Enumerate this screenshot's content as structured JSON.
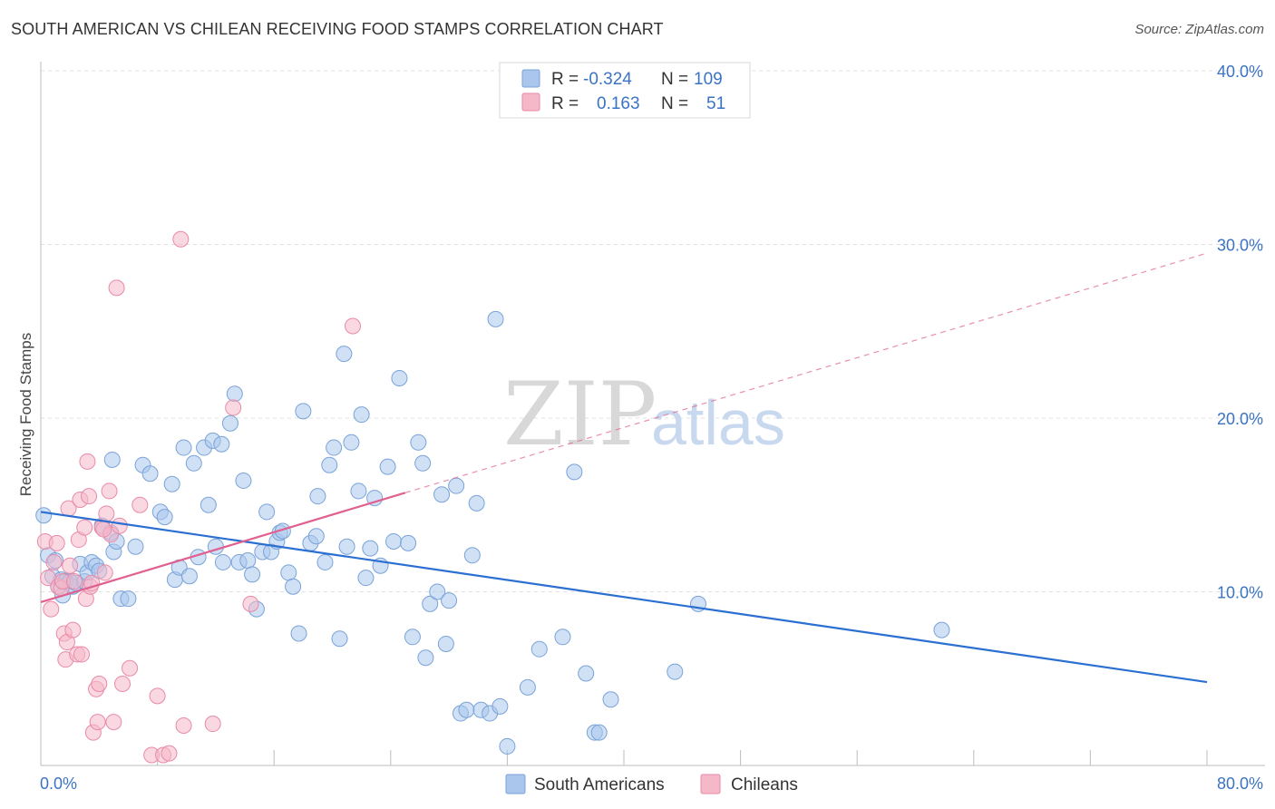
{
  "title": "SOUTH AMERICAN VS CHILEAN RECEIVING FOOD STAMPS CORRELATION CHART",
  "source": "Source: ZipAtlas.com",
  "watermark": {
    "zip": "ZIP",
    "atlas": "atlas"
  },
  "legend_top": {
    "rows": [
      {
        "r_label": "R =",
        "r_value": "-0.324",
        "n_label": "N =",
        "n_value": "109",
        "color": "#aac6ec"
      },
      {
        "r_label": "R =",
        "r_value": "0.163",
        "n_label": "N =",
        "n_value": "51",
        "color": "#f5b8c9"
      }
    ]
  },
  "legend_bottom": [
    {
      "label": "South Americans",
      "color": "#aac6ec"
    },
    {
      "label": "Chileans",
      "color": "#f5b8c9"
    }
  ],
  "chart_data": {
    "type": "scatter",
    "ylabel": "Receiving Food Stamps",
    "xlim": [
      0,
      80
    ],
    "ylim": [
      0,
      40
    ],
    "x_tick_labels": [
      {
        "value": 0,
        "label": "0.0%"
      },
      {
        "value": 80,
        "label": "80.0%"
      }
    ],
    "y_tick_labels": [
      {
        "value": 10,
        "label": "10.0%"
      },
      {
        "value": 20,
        "label": "20.0%"
      },
      {
        "value": 30,
        "label": "30.0%"
      },
      {
        "value": 40,
        "label": "40.0%"
      }
    ],
    "grid": true,
    "series": [
      {
        "name": "South Americans",
        "color": "#aac6ec",
        "stroke": "#7aa3d8",
        "trend": {
          "x0": 0,
          "y0": 14.6,
          "x1": 80,
          "y1": 4.8,
          "color": "#2a6fd1"
        },
        "points": [
          [
            0.2,
            14.4
          ],
          [
            0.5,
            12.1
          ],
          [
            0.8,
            10.9
          ],
          [
            1.0,
            11.8
          ],
          [
            1.2,
            10.3
          ],
          [
            1.4,
            10.7
          ],
          [
            1.5,
            9.8
          ],
          [
            1.7,
            10.6
          ],
          [
            2.0,
            10.6
          ],
          [
            2.2,
            10.3
          ],
          [
            2.4,
            10.5
          ],
          [
            2.7,
            11.6
          ],
          [
            3.0,
            10.6
          ],
          [
            3.2,
            11.1
          ],
          [
            3.5,
            11.7
          ],
          [
            3.8,
            11.5
          ],
          [
            4.0,
            11.2
          ],
          [
            4.2,
            13.8
          ],
          [
            4.8,
            13.4
          ],
          [
            5.0,
            12.3
          ],
          [
            5.2,
            12.9
          ],
          [
            5.5,
            9.6
          ],
          [
            6.0,
            9.6
          ],
          [
            6.5,
            12.6
          ],
          [
            4.9,
            17.6
          ],
          [
            7.0,
            17.3
          ],
          [
            7.5,
            16.8
          ],
          [
            8.2,
            14.6
          ],
          [
            8.5,
            14.3
          ],
          [
            9.0,
            16.2
          ],
          [
            9.2,
            10.7
          ],
          [
            9.5,
            11.4
          ],
          [
            9.8,
            18.3
          ],
          [
            10.2,
            10.9
          ],
          [
            10.5,
            17.4
          ],
          [
            10.8,
            12.0
          ],
          [
            11.2,
            18.3
          ],
          [
            11.5,
            15.0
          ],
          [
            11.8,
            18.7
          ],
          [
            12.0,
            12.6
          ],
          [
            12.4,
            18.5
          ],
          [
            12.5,
            11.7
          ],
          [
            13.0,
            19.7
          ],
          [
            13.3,
            21.4
          ],
          [
            13.6,
            11.7
          ],
          [
            13.9,
            16.4
          ],
          [
            14.2,
            11.8
          ],
          [
            14.5,
            11.0
          ],
          [
            14.8,
            9.0
          ],
          [
            15.2,
            12.3
          ],
          [
            15.5,
            14.6
          ],
          [
            15.8,
            12.3
          ],
          [
            16.2,
            12.9
          ],
          [
            16.4,
            13.4
          ],
          [
            16.6,
            13.5
          ],
          [
            17.0,
            11.1
          ],
          [
            17.3,
            10.3
          ],
          [
            17.7,
            7.6
          ],
          [
            18.0,
            20.4
          ],
          [
            18.5,
            12.8
          ],
          [
            18.9,
            13.2
          ],
          [
            19.0,
            15.5
          ],
          [
            19.5,
            11.7
          ],
          [
            19.8,
            17.3
          ],
          [
            20.1,
            18.3
          ],
          [
            20.5,
            7.3
          ],
          [
            20.8,
            23.7
          ],
          [
            21.0,
            12.6
          ],
          [
            21.3,
            18.6
          ],
          [
            21.8,
            15.8
          ],
          [
            22.0,
            20.2
          ],
          [
            22.3,
            10.8
          ],
          [
            22.6,
            12.5
          ],
          [
            22.9,
            15.4
          ],
          [
            23.3,
            11.5
          ],
          [
            23.8,
            17.2
          ],
          [
            24.2,
            12.9
          ],
          [
            24.6,
            22.3
          ],
          [
            25.2,
            12.8
          ],
          [
            25.5,
            7.4
          ],
          [
            25.9,
            18.6
          ],
          [
            26.2,
            17.4
          ],
          [
            26.4,
            6.2
          ],
          [
            26.7,
            9.3
          ],
          [
            27.2,
            10.0
          ],
          [
            27.5,
            15.6
          ],
          [
            27.8,
            7.0
          ],
          [
            28.0,
            9.5
          ],
          [
            28.5,
            16.1
          ],
          [
            28.8,
            3.0
          ],
          [
            29.2,
            3.2
          ],
          [
            29.6,
            12.1
          ],
          [
            29.9,
            15.1
          ],
          [
            30.2,
            3.2
          ],
          [
            30.8,
            3.0
          ],
          [
            31.2,
            25.7
          ],
          [
            31.5,
            3.4
          ],
          [
            32.0,
            1.1
          ],
          [
            33.4,
            4.5
          ],
          [
            34.2,
            6.7
          ],
          [
            35.8,
            7.4
          ],
          [
            36.6,
            16.9
          ],
          [
            37.4,
            5.3
          ],
          [
            38.0,
            1.9
          ],
          [
            38.3,
            1.9
          ],
          [
            39.1,
            3.8
          ],
          [
            43.5,
            5.4
          ],
          [
            45.1,
            9.3
          ],
          [
            61.8,
            7.8
          ]
        ]
      },
      {
        "name": "Chileans",
        "color": "#f5b8c9",
        "stroke": "#e98aa8",
        "trend": {
          "x0": 0,
          "y0": 9.4,
          "x1": 25.0,
          "y1": 15.7,
          "color": "#e0608f",
          "dash_to_x": 80,
          "dash_to_y": 29.5
        },
        "points": [
          [
            0.3,
            12.9
          ],
          [
            0.5,
            10.8
          ],
          [
            0.7,
            9.0
          ],
          [
            0.9,
            11.7
          ],
          [
            1.1,
            12.8
          ],
          [
            1.2,
            10.3
          ],
          [
            1.4,
            10.2
          ],
          [
            1.5,
            10.6
          ],
          [
            1.6,
            7.6
          ],
          [
            1.7,
            6.1
          ],
          [
            1.8,
            7.1
          ],
          [
            1.9,
            14.8
          ],
          [
            2.0,
            11.5
          ],
          [
            2.2,
            7.8
          ],
          [
            2.3,
            10.6
          ],
          [
            2.5,
            6.4
          ],
          [
            2.6,
            13.0
          ],
          [
            2.7,
            15.3
          ],
          [
            2.8,
            6.4
          ],
          [
            3.0,
            13.7
          ],
          [
            3.1,
            9.6
          ],
          [
            3.2,
            17.5
          ],
          [
            3.3,
            15.5
          ],
          [
            3.4,
            10.3
          ],
          [
            3.5,
            10.5
          ],
          [
            3.6,
            1.9
          ],
          [
            3.8,
            4.4
          ],
          [
            3.9,
            2.5
          ],
          [
            4.0,
            4.7
          ],
          [
            4.2,
            13.7
          ],
          [
            4.4,
            11.1
          ],
          [
            4.5,
            14.5
          ],
          [
            4.7,
            15.8
          ],
          [
            4.8,
            13.3
          ],
          [
            5.0,
            2.5
          ],
          [
            5.2,
            27.5
          ],
          [
            5.4,
            13.8
          ],
          [
            5.6,
            4.7
          ],
          [
            6.1,
            5.6
          ],
          [
            6.8,
            15.0
          ],
          [
            7.6,
            0.6
          ],
          [
            8.0,
            4.0
          ],
          [
            8.4,
            0.6
          ],
          [
            8.8,
            0.7
          ],
          [
            9.6,
            30.3
          ],
          [
            9.8,
            2.3
          ],
          [
            11.8,
            2.4
          ],
          [
            13.2,
            20.6
          ],
          [
            14.4,
            9.3
          ],
          [
            21.4,
            25.3
          ],
          [
            4.3,
            13.6
          ]
        ]
      }
    ]
  }
}
